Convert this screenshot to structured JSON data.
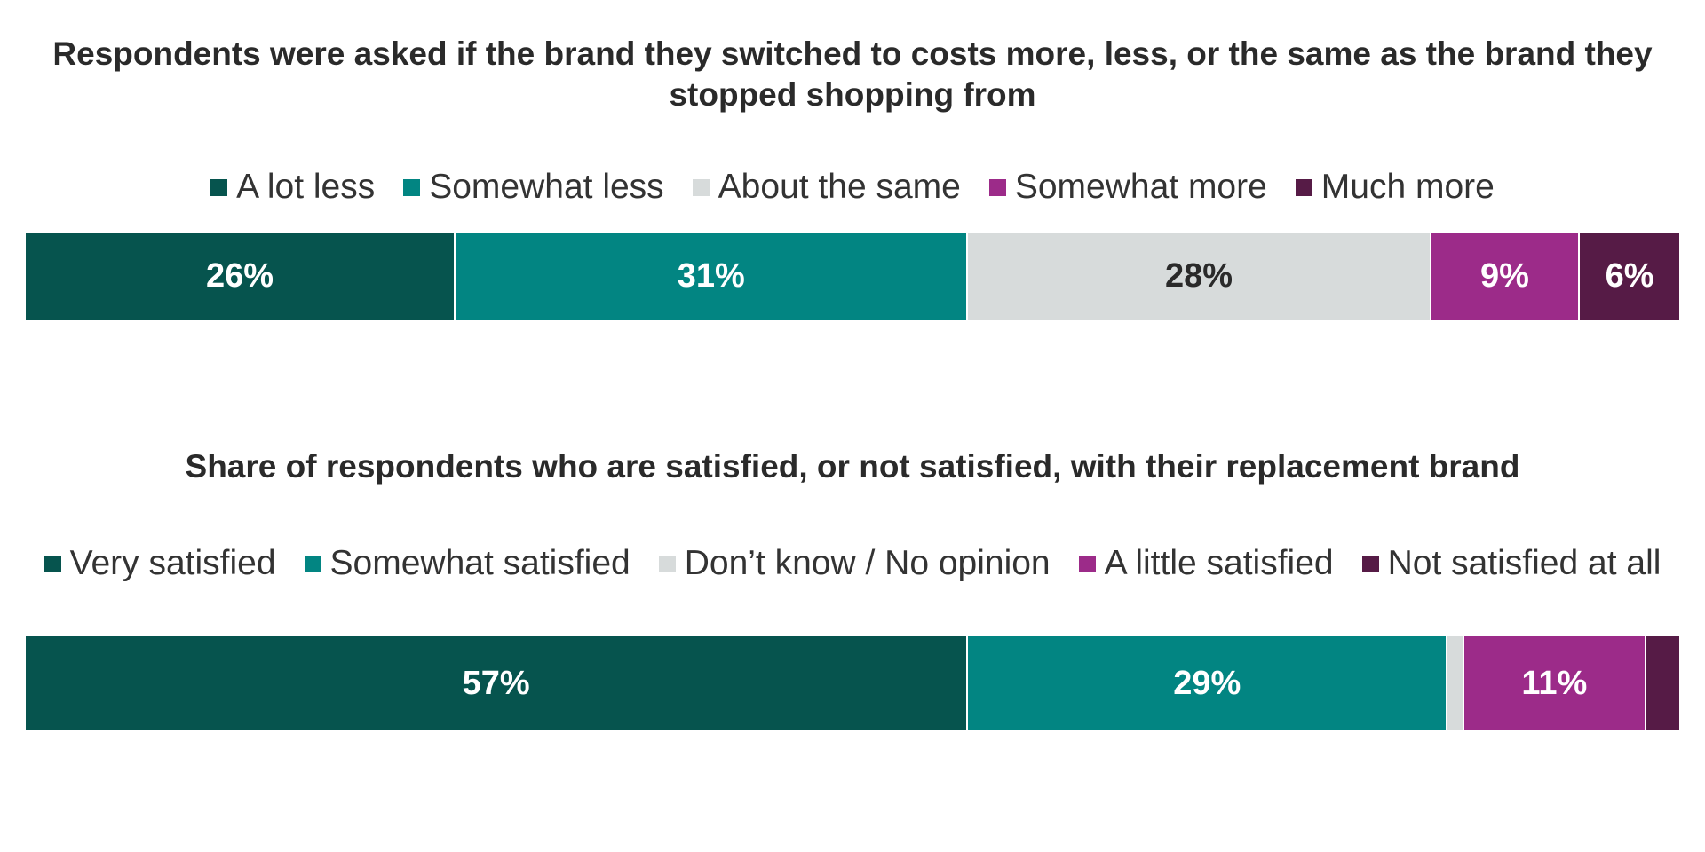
{
  "chart_data": [
    {
      "type": "bar",
      "orientation": "horizontal-stacked-100",
      "title": "Respondents were asked if the brand they switched to costs more, less, or the same as the brand they stopped shopping from",
      "series": [
        {
          "name": "A lot less",
          "value": 26,
          "label": "26%",
          "color": "#06544e",
          "text_color": "#ffffff"
        },
        {
          "name": "Somewhat less",
          "value": 31,
          "label": "31%",
          "color": "#028582",
          "text_color": "#ffffff"
        },
        {
          "name": "About the same",
          "value": 28,
          "label": "28%",
          "color": "#d7dbdb",
          "text_color": "#2a2a2a"
        },
        {
          "name": "Somewhat more",
          "value": 9,
          "label": "9%",
          "color": "#9c2b89",
          "text_color": "#ffffff"
        },
        {
          "name": "Much more",
          "value": 6,
          "label": "6%",
          "color": "#561b46",
          "text_color": "#ffffff"
        }
      ],
      "legend_position": "top"
    },
    {
      "type": "bar",
      "orientation": "horizontal-stacked-100",
      "title": "Share of respondents who are satisfied, or not satisfied, with their replacement brand",
      "series": [
        {
          "name": "Very satisfied",
          "value": 57,
          "label": "57%",
          "color": "#06544e",
          "text_color": "#ffffff"
        },
        {
          "name": "Somewhat satisfied",
          "value": 29,
          "label": "29%",
          "color": "#028582",
          "text_color": "#ffffff"
        },
        {
          "name": "Don’t know / No opinion",
          "value": 1,
          "label": "",
          "color": "#d7dbdb",
          "text_color": "#2a2a2a"
        },
        {
          "name": "A little satisfied",
          "value": 11,
          "label": "11%",
          "color": "#9c2b89",
          "text_color": "#ffffff"
        },
        {
          "name": "Not satisfied at all",
          "value": 2,
          "label": "",
          "color": "#561b46",
          "text_color": "#ffffff"
        }
      ],
      "legend_position": "top"
    }
  ]
}
